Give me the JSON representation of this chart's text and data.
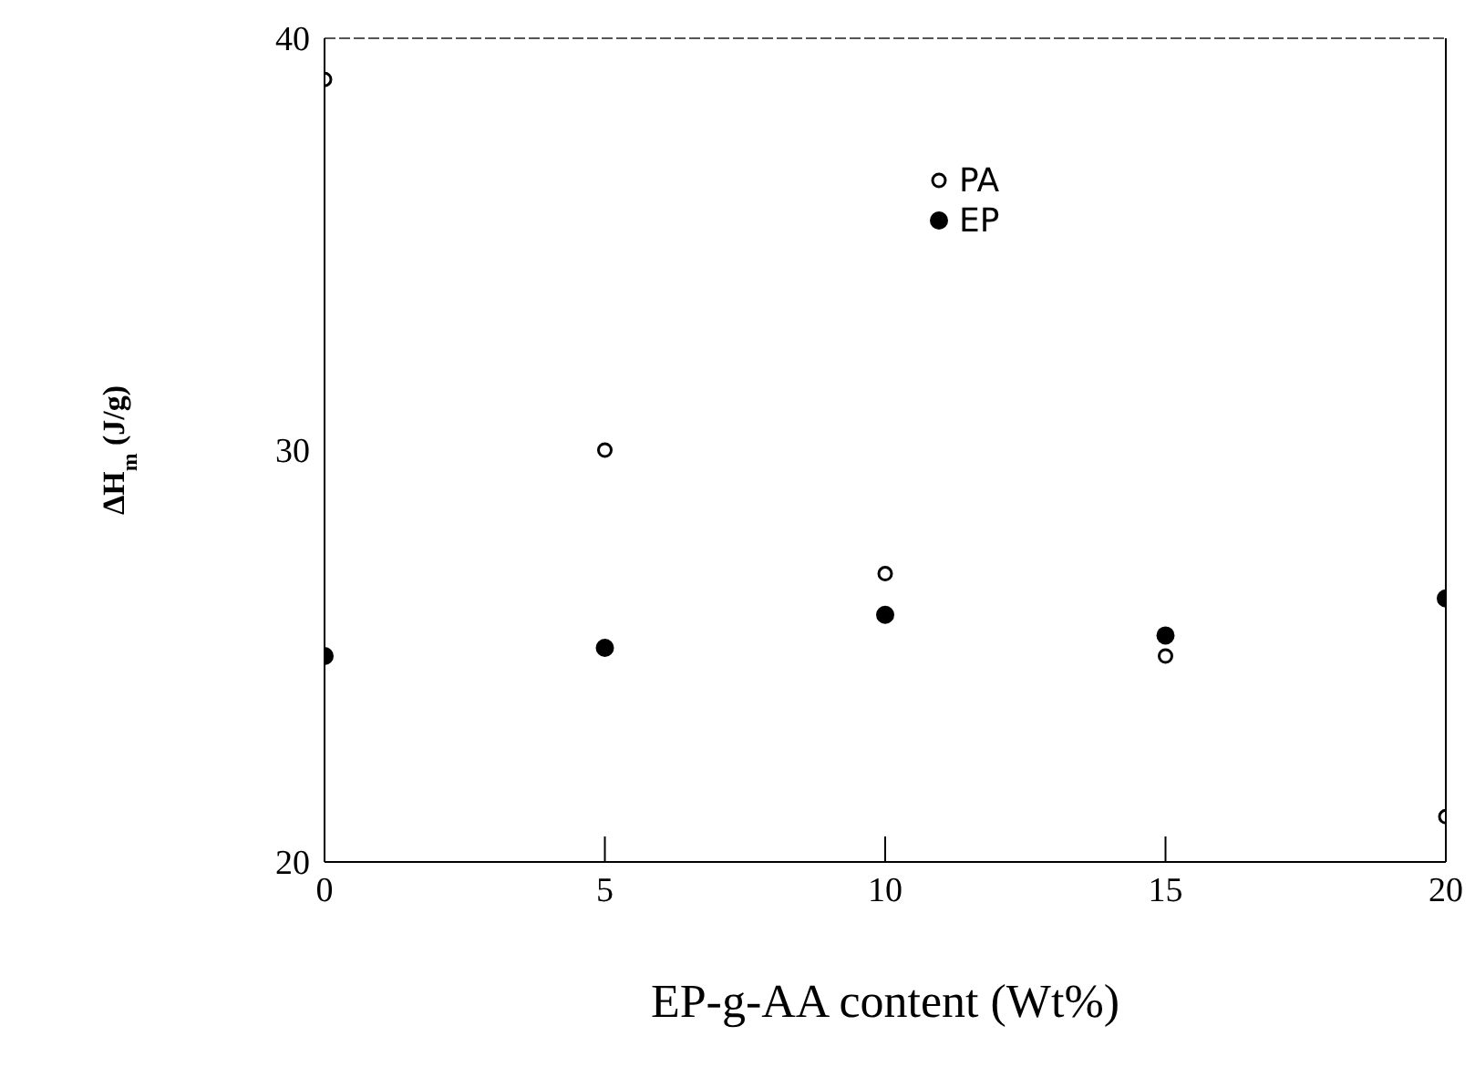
{
  "chart_data": {
    "type": "scatter",
    "xlabel": "EP-g-AA content (Wt%)",
    "ylabel": "ΔH$_{m}$ (J/g)",
    "x": [
      0,
      5,
      10,
      15,
      20
    ],
    "series": [
      {
        "name": "PA",
        "color": "#000000",
        "marker": "circle-open",
        "values": [
          39.0,
          30.0,
          27.0,
          25.0,
          21.1
        ]
      },
      {
        "name": "EP",
        "color": "#000000",
        "marker": "circle",
        "values": [
          25.0,
          25.2,
          26.0,
          25.5,
          26.4
        ]
      }
    ],
    "xlim": [
      0,
      20
    ],
    "xticks": [
      0,
      5,
      10,
      15,
      20
    ],
    "ylim": [
      20,
      40
    ],
    "yticks": [
      20,
      30,
      40
    ],
    "grid": false,
    "legend": "top right"
  }
}
